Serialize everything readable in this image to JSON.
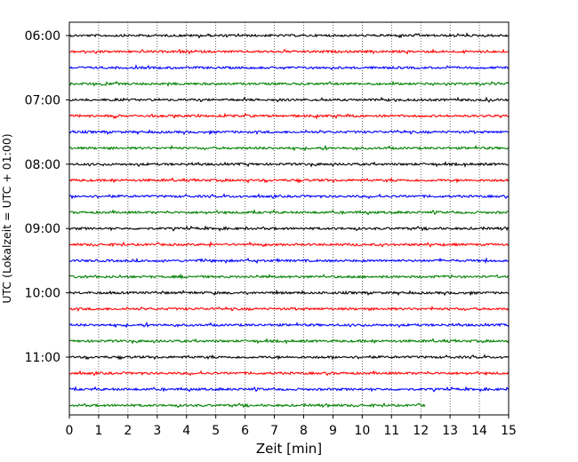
{
  "chart_data": {
    "type": "line",
    "title": "",
    "xlabel": "Zeit  [min]",
    "ylabel": "UTC (Lokalzeit = UTC + 01:00)",
    "xlim": [
      0,
      15
    ],
    "x_ticks": [
      "0",
      "1",
      "2",
      "3",
      "4",
      "5",
      "6",
      "7",
      "8",
      "9",
      "10",
      "11",
      "12",
      "13",
      "14",
      "15"
    ],
    "y_ticks": [
      "06:00",
      "07:00",
      "08:00",
      "09:00",
      "10:00",
      "11:00"
    ],
    "grid": "vertical dotted at each minute",
    "trace_interval_min": 15,
    "start_time": "06:00",
    "last_trace_end_min": 12.15,
    "series_colors": [
      "#000000",
      "#ff0000",
      "#0000ff",
      "#008000"
    ],
    "traces": [
      {
        "time": "06:00",
        "color": "#000000",
        "end_min": 15
      },
      {
        "time": "06:15",
        "color": "#ff0000",
        "end_min": 15
      },
      {
        "time": "06:30",
        "color": "#0000ff",
        "end_min": 15
      },
      {
        "time": "06:45",
        "color": "#008000",
        "end_min": 15
      },
      {
        "time": "07:00",
        "color": "#000000",
        "end_min": 15
      },
      {
        "time": "07:15",
        "color": "#ff0000",
        "end_min": 15
      },
      {
        "time": "07:30",
        "color": "#0000ff",
        "end_min": 15
      },
      {
        "time": "07:45",
        "color": "#008000",
        "end_min": 15
      },
      {
        "time": "08:00",
        "color": "#000000",
        "end_min": 15
      },
      {
        "time": "08:15",
        "color": "#ff0000",
        "end_min": 15
      },
      {
        "time": "08:30",
        "color": "#0000ff",
        "end_min": 15
      },
      {
        "time": "08:45",
        "color": "#008000",
        "end_min": 15
      },
      {
        "time": "09:00",
        "color": "#000000",
        "end_min": 15
      },
      {
        "time": "09:15",
        "color": "#ff0000",
        "end_min": 15
      },
      {
        "time": "09:30",
        "color": "#0000ff",
        "end_min": 15
      },
      {
        "time": "09:45",
        "color": "#008000",
        "end_min": 15
      },
      {
        "time": "10:00",
        "color": "#000000",
        "end_min": 15
      },
      {
        "time": "10:15",
        "color": "#ff0000",
        "end_min": 15
      },
      {
        "time": "10:30",
        "color": "#0000ff",
        "end_min": 15
      },
      {
        "time": "10:45",
        "color": "#008000",
        "end_min": 15
      },
      {
        "time": "11:00",
        "color": "#000000",
        "end_min": 15
      },
      {
        "time": "11:15",
        "color": "#ff0000",
        "end_min": 15
      },
      {
        "time": "11:30",
        "color": "#0000ff",
        "end_min": 15
      },
      {
        "time": "11:45",
        "color": "#008000",
        "end_min": 12.15
      }
    ]
  }
}
